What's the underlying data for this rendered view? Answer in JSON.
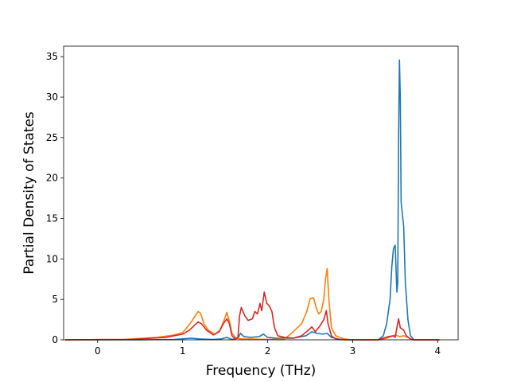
{
  "chart_data": {
    "type": "line",
    "title": "",
    "xlabel": "Frequency (THz)",
    "ylabel": "Partial Density of States",
    "xlim": [
      -0.4,
      4.24
    ],
    "ylim": [
      0,
      36.3
    ],
    "xticks": [
      0,
      1,
      2,
      3,
      4
    ],
    "xtick_labels": [
      "0",
      "1",
      "2",
      "3",
      "4"
    ],
    "yticks": [
      0,
      5,
      10,
      15,
      20,
      25,
      30,
      35
    ],
    "ytick_labels": [
      "0",
      "5",
      "10",
      "15",
      "20",
      "25",
      "30",
      "35"
    ],
    "grid": false,
    "legend": "none",
    "series": [
      {
        "color": "#1f77b4",
        "points": [
          [
            -0.38,
            0
          ],
          [
            0.5,
            0
          ],
          [
            0.9,
            0.05
          ],
          [
            1.1,
            0.2
          ],
          [
            1.2,
            0.1
          ],
          [
            1.35,
            0.05
          ],
          [
            1.45,
            0.1
          ],
          [
            1.52,
            0.3
          ],
          [
            1.58,
            0.05
          ],
          [
            1.65,
            0.2
          ],
          [
            1.68,
            0.8
          ],
          [
            1.72,
            0.4
          ],
          [
            1.8,
            0.3
          ],
          [
            1.9,
            0.4
          ],
          [
            1.95,
            0.7
          ],
          [
            2.0,
            0.3
          ],
          [
            2.1,
            0.2
          ],
          [
            2.3,
            0.2
          ],
          [
            2.45,
            0.5
          ],
          [
            2.52,
            1.0
          ],
          [
            2.58,
            0.8
          ],
          [
            2.65,
            0.7
          ],
          [
            2.7,
            0.8
          ],
          [
            2.75,
            0.3
          ],
          [
            2.85,
            0.05
          ],
          [
            3.0,
            0
          ],
          [
            3.3,
            0
          ],
          [
            3.36,
            0.5
          ],
          [
            3.4,
            2.0
          ],
          [
            3.44,
            5.0
          ],
          [
            3.46,
            9.0
          ],
          [
            3.48,
            11.3
          ],
          [
            3.5,
            11.7
          ],
          [
            3.52,
            5.9
          ],
          [
            3.53,
            7.0
          ],
          [
            3.54,
            25.0
          ],
          [
            3.55,
            34.6
          ],
          [
            3.56,
            30.0
          ],
          [
            3.57,
            17.0
          ],
          [
            3.6,
            14.0
          ],
          [
            3.62,
            7.0
          ],
          [
            3.65,
            2.5
          ],
          [
            3.68,
            0.5
          ],
          [
            3.72,
            0
          ],
          [
            4.02,
            0
          ]
        ]
      },
      {
        "color": "#ff7f0e",
        "points": [
          [
            -0.38,
            0
          ],
          [
            0.3,
            0.05
          ],
          [
            0.7,
            0.3
          ],
          [
            0.9,
            0.6
          ],
          [
            1.0,
            0.9
          ],
          [
            1.05,
            1.5
          ],
          [
            1.1,
            2.2
          ],
          [
            1.15,
            3.0
          ],
          [
            1.18,
            3.5
          ],
          [
            1.21,
            3.3
          ],
          [
            1.25,
            2.0
          ],
          [
            1.3,
            1.2
          ],
          [
            1.38,
            0.7
          ],
          [
            1.44,
            1.2
          ],
          [
            1.49,
            2.5
          ],
          [
            1.52,
            3.4
          ],
          [
            1.55,
            2.3
          ],
          [
            1.58,
            0.8
          ],
          [
            1.63,
            0.2
          ],
          [
            1.7,
            0.1
          ],
          [
            1.8,
            0.1
          ],
          [
            2.0,
            0.05
          ],
          [
            2.2,
            0.1
          ],
          [
            2.3,
            1.0
          ],
          [
            2.4,
            2.0
          ],
          [
            2.46,
            3.5
          ],
          [
            2.5,
            5.1
          ],
          [
            2.54,
            5.2
          ],
          [
            2.57,
            4.0
          ],
          [
            2.6,
            3.2
          ],
          [
            2.63,
            3.5
          ],
          [
            2.66,
            5.0
          ],
          [
            2.68,
            7.5
          ],
          [
            2.7,
            8.8
          ],
          [
            2.72,
            5.0
          ],
          [
            2.75,
            1.5
          ],
          [
            2.8,
            0.5
          ],
          [
            2.9,
            0.1
          ],
          [
            3.0,
            0
          ],
          [
            3.3,
            0
          ],
          [
            3.4,
            0.2
          ],
          [
            3.5,
            0.6
          ],
          [
            3.55,
            0.4
          ],
          [
            3.6,
            0.5
          ],
          [
            3.65,
            0.3
          ],
          [
            3.7,
            0
          ],
          [
            4.02,
            0
          ]
        ]
      },
      {
        "color": "#d62728",
        "points": [
          [
            -0.38,
            0
          ],
          [
            0.4,
            0.05
          ],
          [
            0.8,
            0.3
          ],
          [
            1.0,
            0.7
          ],
          [
            1.08,
            1.2
          ],
          [
            1.14,
            1.8
          ],
          [
            1.18,
            2.2
          ],
          [
            1.22,
            2.0
          ],
          [
            1.28,
            1.2
          ],
          [
            1.36,
            0.6
          ],
          [
            1.43,
            1.0
          ],
          [
            1.48,
            2.0
          ],
          [
            1.52,
            2.6
          ],
          [
            1.55,
            2.0
          ],
          [
            1.58,
            0.5
          ],
          [
            1.62,
            0.1
          ],
          [
            1.65,
            0.3
          ],
          [
            1.67,
            3.0
          ],
          [
            1.69,
            4.0
          ],
          [
            1.73,
            3.0
          ],
          [
            1.77,
            2.4
          ],
          [
            1.82,
            2.6
          ],
          [
            1.85,
            3.5
          ],
          [
            1.88,
            3.2
          ],
          [
            1.91,
            4.5
          ],
          [
            1.93,
            3.6
          ],
          [
            1.96,
            5.9
          ],
          [
            1.99,
            4.5
          ],
          [
            2.02,
            4.2
          ],
          [
            2.05,
            3.5
          ],
          [
            2.08,
            1.5
          ],
          [
            2.12,
            0.5
          ],
          [
            2.2,
            0.3
          ],
          [
            2.3,
            0.2
          ],
          [
            2.4,
            0.5
          ],
          [
            2.48,
            1.2
          ],
          [
            2.52,
            1.6
          ],
          [
            2.56,
            1.0
          ],
          [
            2.62,
            1.8
          ],
          [
            2.66,
            2.5
          ],
          [
            2.69,
            3.6
          ],
          [
            2.71,
            2.0
          ],
          [
            2.75,
            0.5
          ],
          [
            2.8,
            0.1
          ],
          [
            2.9,
            0
          ],
          [
            3.3,
            0
          ],
          [
            3.42,
            0.4
          ],
          [
            3.48,
            0.5
          ],
          [
            3.5,
            0.3
          ],
          [
            3.52,
            1.5
          ],
          [
            3.54,
            2.6
          ],
          [
            3.56,
            1.5
          ],
          [
            3.6,
            1.2
          ],
          [
            3.63,
            0.5
          ],
          [
            3.68,
            0.1
          ],
          [
            3.72,
            0
          ],
          [
            4.02,
            0
          ]
        ]
      }
    ]
  }
}
